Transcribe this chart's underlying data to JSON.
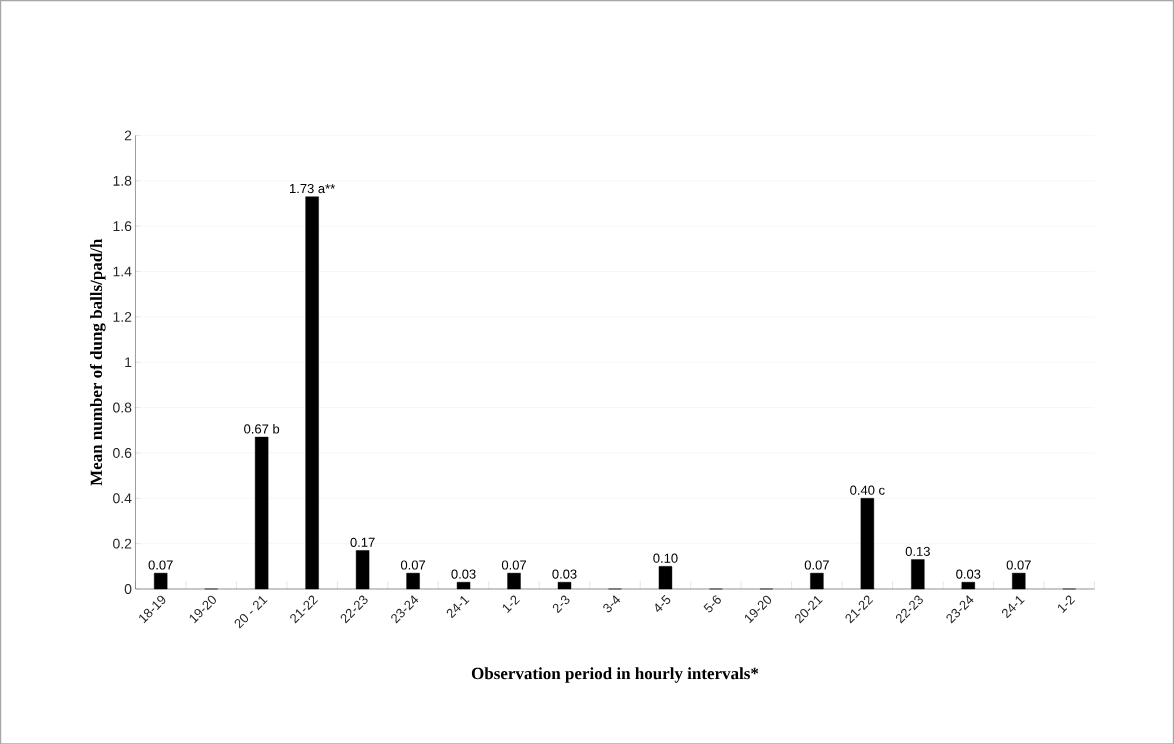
{
  "chart_data": {
    "type": "bar",
    "xlabel": "Observation period in hourly intervals*",
    "ylabel": "Mean number of dung balls/pad/h",
    "categories": [
      "18-19",
      "19-20",
      "20 - 21",
      "21-22",
      "22-23",
      "23-24",
      "24-1",
      "1-2",
      "2-3",
      "3-4",
      "4-5",
      "5-6",
      "19-20",
      "20-21",
      "21-22",
      "22-23",
      "23-24",
      "24-1",
      "1-2"
    ],
    "values": [
      0.07,
      0,
      0.67,
      1.73,
      0.17,
      0.07,
      0.03,
      0.07,
      0.03,
      0,
      0.1,
      0,
      0,
      0.07,
      0.4,
      0.13,
      0.03,
      0.07,
      0
    ],
    "value_labels": [
      "0.07",
      null,
      "0.67 b",
      "1.73 a**",
      "0.17",
      "0.07",
      "0.03",
      "0.07",
      "0.03",
      null,
      "0.10",
      null,
      null,
      "0.07",
      "0.40 c",
      "0.13",
      "0.03",
      "0.07",
      null
    ],
    "color": "#000000",
    "ylim": [
      0,
      2
    ],
    "yticks": [
      0,
      0.2,
      0.4,
      0.6,
      0.8,
      1,
      1.2,
      1.4,
      1.6,
      1.8,
      2
    ],
    "grid": "y"
  }
}
